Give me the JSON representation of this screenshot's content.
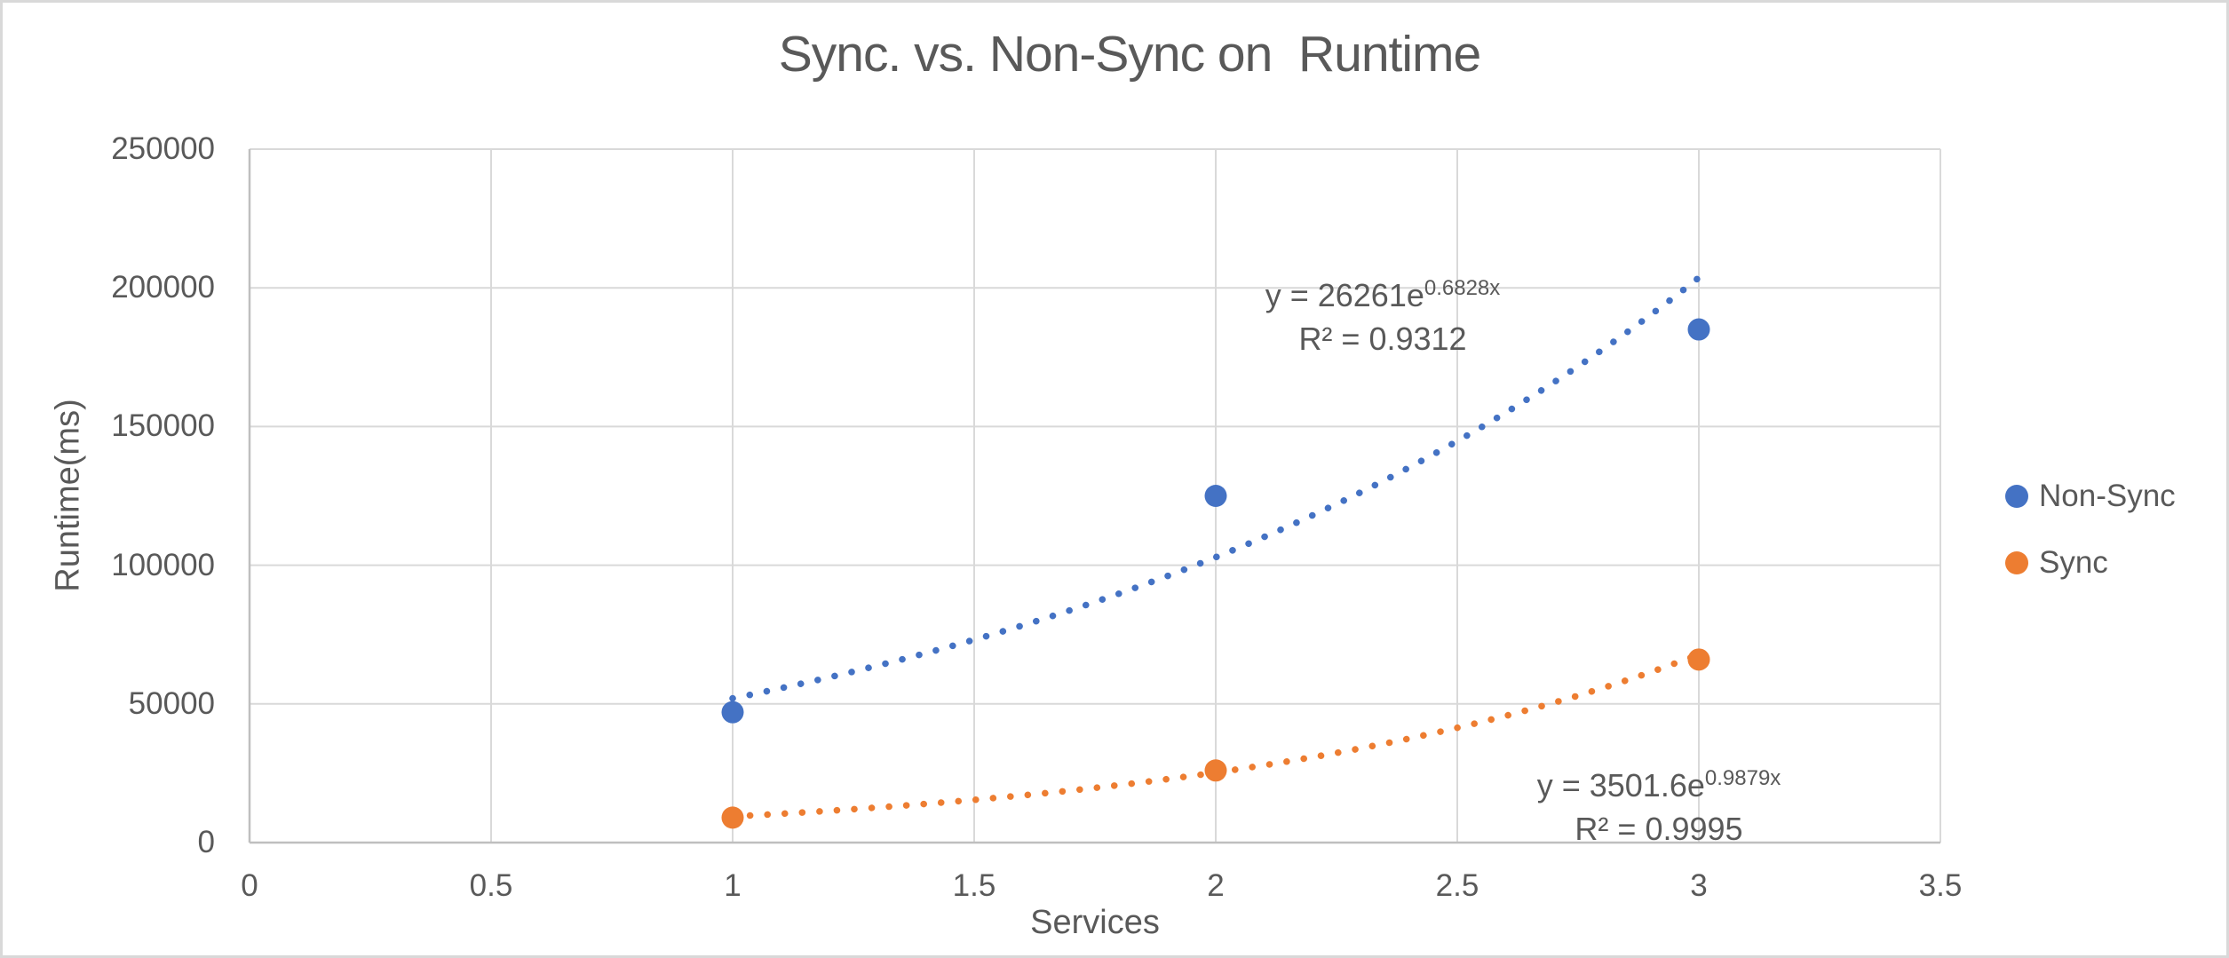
{
  "window": {
    "background_color": "#FFFFFF",
    "border_color": "#D9D9D9"
  },
  "chart_data": {
    "type": "scatter",
    "title": "Sync. vs. Non-Sync on  Runtime",
    "xlabel": "Services",
    "ylabel": "Runtime(ms)",
    "xlim": [
      0,
      3.5
    ],
    "ylim": [
      0,
      250000
    ],
    "xticks": [
      0,
      0.5,
      1,
      1.5,
      2,
      2.5,
      3,
      3.5
    ],
    "xtick_labels": [
      "0",
      "0.5",
      "1",
      "1.5",
      "2",
      "2.5",
      "3",
      "3.5"
    ],
    "yticks": [
      0,
      50000,
      100000,
      150000,
      200000,
      250000
    ],
    "ytick_labels": [
      "0",
      "50000",
      "100000",
      "150000",
      "200000",
      "250000"
    ],
    "grid": true,
    "legend_position": "right",
    "text_color": "#595959",
    "gridline_color": "#D9D9D9",
    "axis_line_color": "#BFBFBF",
    "series": [
      {
        "name": "Non-Sync",
        "color": "#4472C4",
        "marker": "circle",
        "x": [
          1,
          2,
          3
        ],
        "y": [
          47000,
          125000,
          185000
        ],
        "trendline": {
          "type": "exponential",
          "coef_a": 26261,
          "coef_b": 0.6828,
          "r_squared": 0.9312,
          "x_range": [
            1,
            3
          ],
          "style": "dotted",
          "equation_prefix": "y = 26261e",
          "equation_exponent": "0.6828x",
          "r2_label": "R² = 0.9312"
        }
      },
      {
        "name": "Sync",
        "color": "#ED7D31",
        "marker": "circle",
        "x": [
          1,
          2,
          3
        ],
        "y": [
          9000,
          26000,
          66000
        ],
        "trendline": {
          "type": "exponential",
          "coef_a": 3501.6,
          "coef_b": 0.9879,
          "r_squared": 0.9995,
          "x_range": [
            1,
            3
          ],
          "style": "dotted",
          "equation_prefix": "y = 3501.6e",
          "equation_exponent": "0.9879x",
          "r2_label": "R² = 0.9995"
        }
      }
    ]
  }
}
